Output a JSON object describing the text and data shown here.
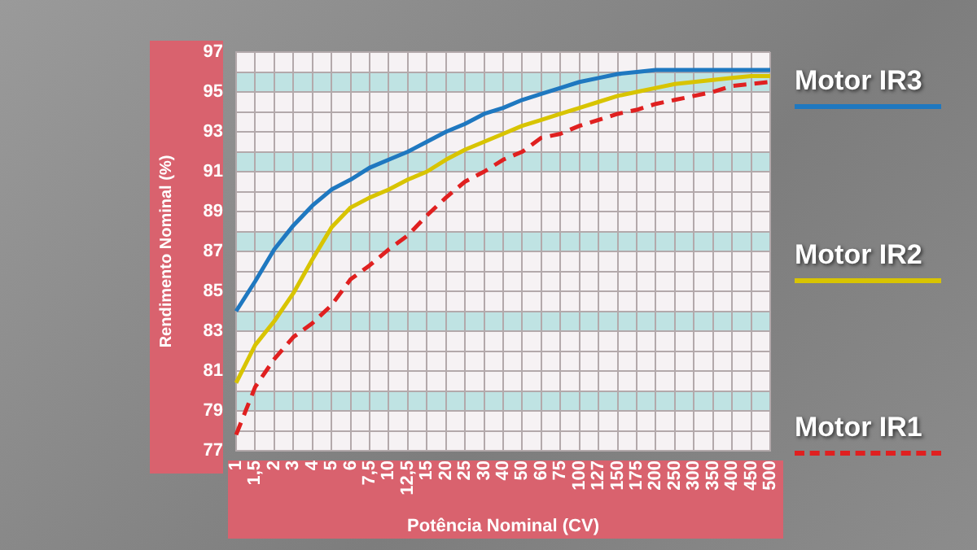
{
  "chart_data": {
    "type": "line",
    "xlabel": "Potência Nominal (CV)",
    "ylabel": "Rendimento Nominal (%)",
    "categories": [
      "1",
      "1,5",
      "2",
      "3",
      "4",
      "5",
      "6",
      "7,5",
      "10",
      "12,5",
      "15",
      "20",
      "25",
      "30",
      "40",
      "50",
      "60",
      "75",
      "100",
      "127",
      "150",
      "175",
      "200",
      "250",
      "300",
      "350",
      "400",
      "450",
      "500"
    ],
    "series": [
      {
        "name": "Motor IR3",
        "color": "#1f78c0",
        "line_style": "solid",
        "values": [
          84.0,
          85.5,
          87.1,
          88.3,
          89.3,
          90.1,
          90.6,
          91.2,
          91.6,
          92.0,
          92.5,
          93.0,
          93.4,
          93.9,
          94.2,
          94.6,
          94.9,
          95.2,
          95.5,
          95.7,
          95.9,
          96.0,
          96.1,
          96.1,
          96.1,
          96.1,
          96.1,
          96.1,
          96.1
        ]
      },
      {
        "name": "Motor IR2",
        "color": "#d8c400",
        "line_style": "solid",
        "values": [
          80.4,
          82.3,
          83.5,
          84.9,
          86.6,
          88.2,
          89.2,
          89.7,
          90.1,
          90.6,
          91.0,
          91.6,
          92.1,
          92.5,
          92.9,
          93.3,
          93.6,
          93.9,
          94.2,
          94.5,
          94.8,
          95.0,
          95.2,
          95.4,
          95.5,
          95.6,
          95.7,
          95.8,
          95.8
        ]
      },
      {
        "name": "Motor IR1",
        "color": "#e02020",
        "line_style": "dashed",
        "values": [
          77.8,
          80.2,
          81.6,
          82.7,
          83.4,
          84.3,
          85.6,
          86.3,
          87.1,
          87.8,
          88.8,
          89.7,
          90.5,
          91.0,
          91.6,
          92.0,
          92.7,
          92.9,
          93.3,
          93.6,
          93.9,
          94.1,
          94.4,
          94.6,
          94.8,
          95.0,
          95.3,
          95.4,
          95.5
        ]
      }
    ],
    "ylim": [
      77,
      97
    ],
    "yticks": [
      77,
      {
        "value": 78,
        "label": null
      },
      79,
      {
        "value": 80,
        "label": null
      },
      81,
      {
        "value": 82,
        "label": null
      },
      83,
      {
        "value": 84,
        "label": null
      },
      85,
      {
        "value": 86,
        "label": null
      },
      87,
      {
        "value": 88,
        "label": null
      },
      89,
      {
        "value": 90,
        "label": null
      },
      91,
      {
        "value": 92,
        "label": null
      },
      93,
      {
        "value": 94,
        "label": null
      },
      95,
      {
        "value": 96,
        "label": null
      },
      97
    ],
    "bands": [
      {
        "axis": "y",
        "from": 79,
        "to": 80,
        "color": "#bfe3e3"
      },
      {
        "axis": "y",
        "from": 83,
        "to": 84,
        "color": "#bfe3e3"
      },
      {
        "axis": "y",
        "from": 87,
        "to": 88,
        "color": "#bfe3e3"
      },
      {
        "axis": "y",
        "from": 91,
        "to": 92,
        "color": "#bfe3e3"
      },
      {
        "axis": "y",
        "from": 95,
        "to": 96,
        "color": "#bfe3e3"
      }
    ],
    "grid": true,
    "legend": "right",
    "marker": "none"
  }
}
